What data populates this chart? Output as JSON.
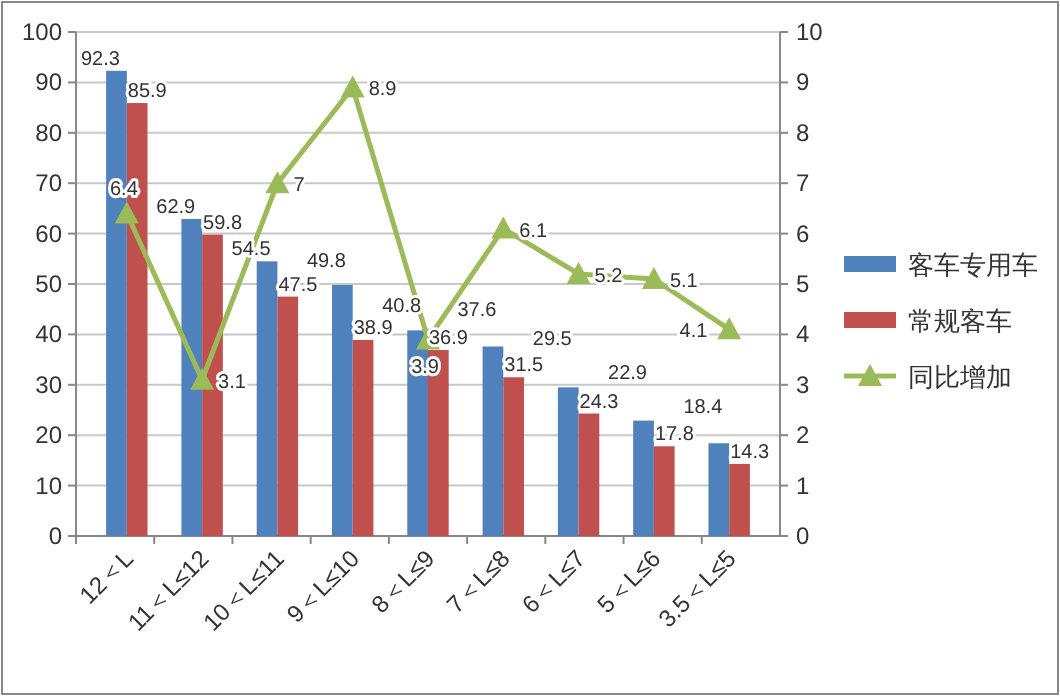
{
  "chart_data": {
    "type": "bar",
    "categories": [
      "12＜L",
      "11＜L≤12",
      "10＜L≤11",
      "9＜L≤10",
      "8＜L≤9",
      "7＜L≤8",
      "6＜L≤7",
      "5＜L≤6",
      "3.5＜L≤5"
    ],
    "series": [
      {
        "name": "客车专用车",
        "color": "#4f81bd",
        "values": [
          92.3,
          62.9,
          54.5,
          49.8,
          40.8,
          37.6,
          29.5,
          22.9,
          18.4
        ]
      },
      {
        "name": "常规客车",
        "color": "#c0504d",
        "values": [
          85.9,
          59.8,
          47.5,
          38.9,
          36.9,
          31.5,
          24.3,
          17.8,
          14.3
        ]
      },
      {
        "name": "同比增加",
        "type": "line",
        "axis": "y2",
        "color": "#9bbb59",
        "marker": "triangle",
        "values": [
          6.4,
          3.1,
          7,
          8.9,
          3.9,
          6.1,
          5.2,
          5.1,
          4.1
        ]
      }
    ],
    "ylim": [
      0,
      100
    ],
    "yticks": [
      0,
      10,
      20,
      30,
      40,
      50,
      60,
      70,
      80,
      90,
      100
    ],
    "y2lim": [
      0,
      10
    ],
    "y2ticks": [
      0,
      1,
      2,
      3,
      4,
      5,
      6,
      7,
      8,
      9,
      10
    ],
    "grid": "y",
    "legend": "right",
    "data_labels": true
  }
}
